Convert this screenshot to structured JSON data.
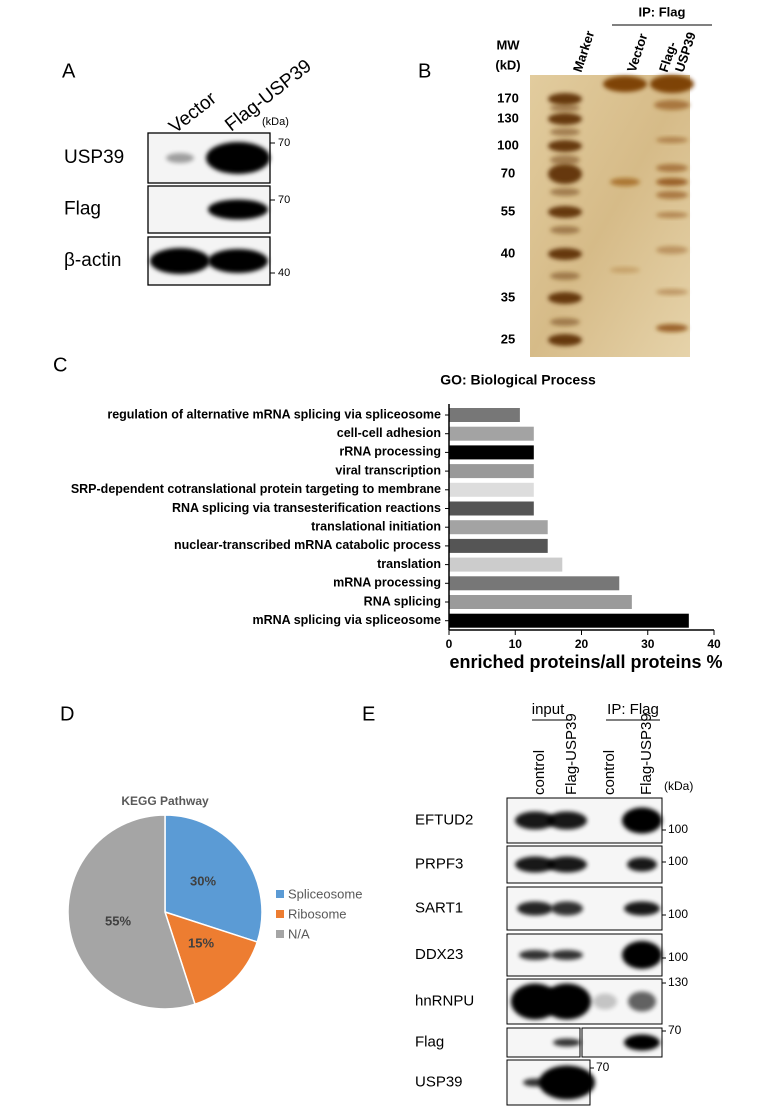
{
  "panel_a": {
    "letter": "A",
    "lanes": [
      "Vector",
      "Flag-USP39"
    ],
    "unit": "(kDa)",
    "rows": [
      {
        "label": "USP39",
        "marker": 70
      },
      {
        "label": "Flag",
        "marker": 70
      },
      {
        "label": "β-actin",
        "marker": 40
      }
    ]
  },
  "panel_b": {
    "letter": "B",
    "header": "IP: Flag",
    "mw": [
      "MW",
      "(kD)"
    ],
    "lanes": [
      [
        "Marker"
      ],
      [
        "Vector"
      ],
      [
        "Flag-",
        "USP39"
      ]
    ],
    "markers": [
      170,
      130,
      100,
      70,
      55,
      40,
      35,
      25
    ]
  },
  "chart_data": [
    {
      "type": "hbar",
      "panel_label": "C",
      "title": "GO: Biological Process",
      "x_label": "enriched proteins/all proteins %",
      "categories": [
        "regulation of alternative mRNA splicing  via spliceosome",
        "cell-cell adhesion",
        "rRNA processing",
        "viral transcription",
        "SRP-dependent cotranslational protein targeting to membrane",
        "RNA splicing via transesterification reactions",
        "translational initiation",
        "nuclear-transcribed mRNA catabolic process",
        "translation",
        "mRNA processing",
        "RNA splicing",
        "mRNA splicing via spliceosome"
      ],
      "values": [
        10.7,
        12.8,
        12.8,
        12.8,
        12.8,
        12.8,
        14.9,
        14.9,
        17.1,
        25.7,
        27.6,
        36.2
      ],
      "colors": [
        "#777777",
        "#a3a3a3",
        "#000000",
        "#999999",
        "#dddddd",
        "#555555",
        "#a3a3a3",
        "#555555",
        "#cccccc",
        "#777777",
        "#9a9a9a",
        "#000000"
      ],
      "xlim": [
        0,
        40
      ],
      "xticks": [
        0,
        10,
        20,
        30,
        40
      ]
    },
    {
      "type": "pie",
      "panel_label": "D",
      "title": "KEGG Pathway",
      "categories": [
        "Spliceosome",
        "Ribosome",
        "N/A"
      ],
      "values": [
        30,
        15,
        55
      ],
      "value_labels": [
        "30%",
        "15%",
        "55%"
      ],
      "colors": [
        "#5b9bd5",
        "#ed7d31",
        "#a5a5a5"
      ],
      "legend": "right"
    }
  ],
  "panel_e": {
    "letter": "E",
    "groups": [
      "input",
      "IP: Flag"
    ],
    "lanes": [
      "control",
      "Flag-USP39",
      "control",
      "Flag-USP39"
    ],
    "unit": "(kDa)",
    "rows": [
      {
        "label": "EFTUD2",
        "marker": 100
      },
      {
        "label": "PRPF3",
        "marker": 100
      },
      {
        "label": "SART1",
        "marker": 100
      },
      {
        "label": "DDX23",
        "marker": 100
      },
      {
        "label": "hnRNPU",
        "marker": 130
      },
      {
        "label": "Flag",
        "marker": 70
      },
      {
        "label": "USP39",
        "marker": 70
      }
    ]
  }
}
